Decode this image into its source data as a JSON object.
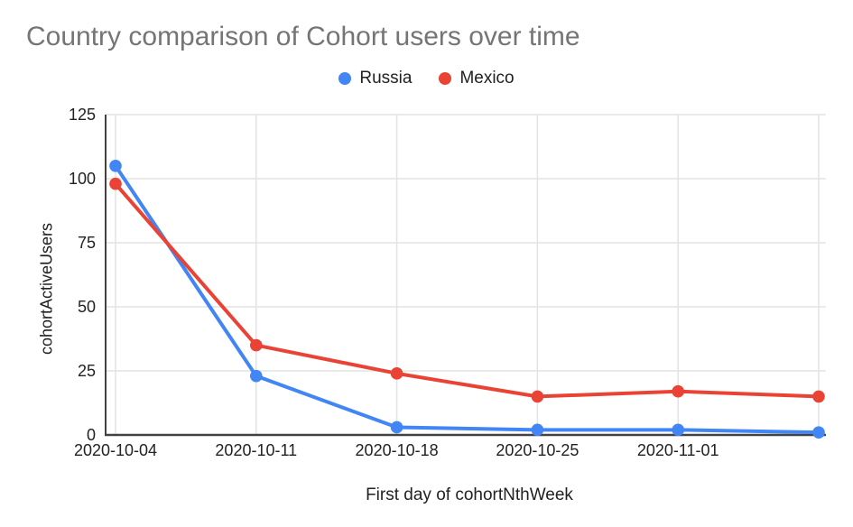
{
  "chart_data": {
    "type": "line",
    "title": "Country comparison of Cohort users over time",
    "xlabel": "First day of cohortNthWeek",
    "ylabel": "cohortActiveUsers",
    "categories": [
      "2020-10-04",
      "2020-10-11",
      "2020-10-18",
      "2020-10-25",
      "2020-11-01",
      ""
    ],
    "y_ticks": [
      0,
      25,
      50,
      75,
      100,
      125
    ],
    "ylim": [
      0,
      125
    ],
    "grid": true,
    "legend_position": "top",
    "series": [
      {
        "name": "Russia",
        "color": "#4285F4",
        "values": [
          105,
          23,
          3,
          2,
          2,
          1
        ]
      },
      {
        "name": "Mexico",
        "color": "#EA4335",
        "values": [
          98,
          35,
          24,
          15,
          17,
          15
        ]
      }
    ]
  }
}
